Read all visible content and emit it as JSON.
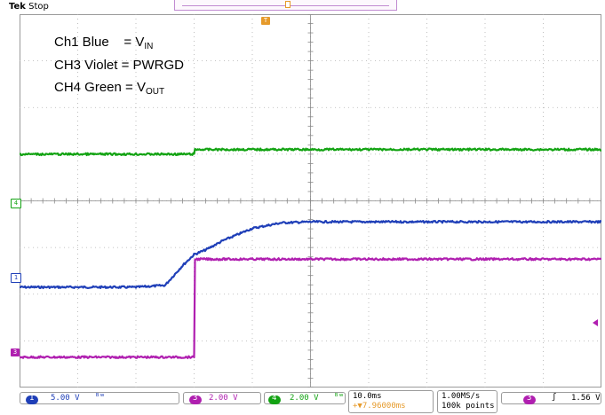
{
  "header": {
    "brand": "Tek",
    "status": "Stop"
  },
  "annotations": {
    "line1_prefix": "Ch1 Blue",
    "line1_eq": "= V",
    "line1_sub": "IN",
    "line2": "CH3 Violet = PWRGD",
    "line3_prefix": "CH4 Green = V",
    "line3_sub": "OUT"
  },
  "markers": {
    "ch4": "4",
    "ch1": "1",
    "ch3": "3",
    "trigger": "T"
  },
  "readouts": {
    "ch1_badge": "1",
    "ch1_scale": "5.00 V",
    "ch1_bw": "ᴮʷ",
    "ch3_badge": "3",
    "ch3_scale": "2.00 V",
    "ch4_badge": "4",
    "ch4_scale": "2.00 V",
    "ch4_bw": "ᴮʷ",
    "timebase": "10.0ms",
    "trig_pos": "+▼7.96000ms",
    "sample_rate": "1.00MS/s",
    "record_length": "100k points",
    "trig_source_badge": "3",
    "trig_slope": "ʃ",
    "trig_level": "1.56 V"
  },
  "colors": {
    "ch1": "#1f3fb8",
    "ch3": "#b01fb0",
    "ch4": "#13a313",
    "trigger": "#e69a2a",
    "grid": "#b0b0b0"
  },
  "chart_data": {
    "type": "line",
    "x_unit": "ms",
    "time_per_div_ms": 10,
    "divisions_x": 10,
    "divisions_y": 8,
    "x_range_ms": [
      -30,
      70
    ],
    "series": [
      {
        "name": "Ch1 Blue",
        "volts_per_div": 5,
        "unit": "V",
        "x": [
          -30,
          -20,
          -10,
          -5,
          -2,
          0,
          2,
          5,
          10,
          15,
          20,
          30,
          40,
          50,
          60,
          70
        ],
        "y": [
          0,
          0,
          0,
          0.2,
          2.3,
          3.5,
          4.0,
          5.0,
          6.3,
          6.9,
          7.0,
          7.0,
          7.0,
          7.0,
          7.0,
          7.0
        ]
      },
      {
        "name": "CH3 Violet",
        "volts_per_div": 2,
        "unit": "V",
        "x": [
          -30,
          -20,
          -10,
          0,
          0.1,
          10,
          20,
          30,
          40,
          50,
          60,
          70
        ],
        "y": [
          0,
          0,
          0,
          0,
          4.2,
          4.2,
          4.2,
          4.2,
          4.2,
          4.2,
          4.2,
          4.2
        ]
      },
      {
        "name": "CH4 Green",
        "volts_per_div": 2,
        "unit": "V",
        "x": [
          -30,
          -20,
          -10,
          0,
          0.1,
          10,
          20,
          30,
          40,
          50,
          60,
          70
        ],
        "y": [
          3.2,
          3.2,
          3.2,
          3.2,
          3.4,
          3.4,
          3.4,
          3.4,
          3.4,
          3.4,
          3.4,
          3.4
        ]
      }
    ]
  }
}
